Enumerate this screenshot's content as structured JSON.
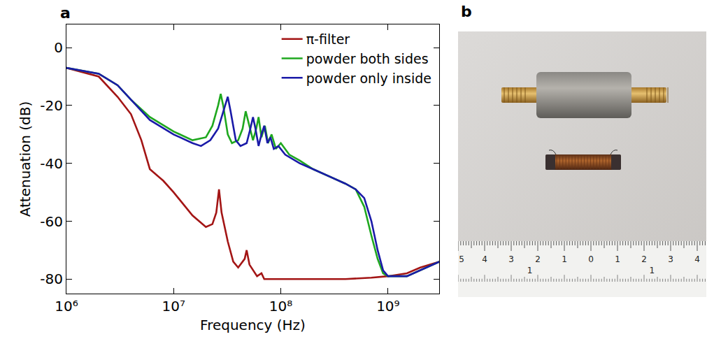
{
  "chart_data": {
    "type": "line",
    "title": "a",
    "x_label": "Frequency (Hz)",
    "y_label": "Attenuation (dB)",
    "log": "x",
    "xlim": [
      1000000,
      3000000000
    ],
    "xticks": [
      {
        "value": 1000000,
        "label": "10⁶"
      },
      {
        "value": 10000000,
        "label": "10⁷"
      },
      {
        "value": 100000000,
        "label": "10⁸"
      },
      {
        "value": 1000000000,
        "label": "10⁹"
      }
    ],
    "ylim": [
      -85,
      8
    ],
    "yticks": [
      -80,
      -60,
      -40,
      -20,
      0
    ],
    "grid": false,
    "legend": "top right",
    "series": [
      {
        "name": "π-filter",
        "color": "#a31515",
        "x": [
          1000000,
          2000000,
          3000000,
          4000000,
          5000000,
          6000000,
          8000000,
          10000000,
          15000000,
          20000000,
          23000000,
          25000000,
          26500000,
          28000000,
          32000000,
          36000000,
          40000000,
          46000000,
          48000000,
          51000000,
          60000000,
          66000000,
          70000000,
          100000000,
          200000000,
          400000000,
          700000000,
          1000000000,
          1500000000,
          2000000000,
          3000000000
        ],
        "values": [
          -7,
          -10,
          -17,
          -23,
          -32,
          -42,
          -46,
          -50,
          -58,
          -62,
          -61,
          -57,
          -49,
          -57,
          -67,
          -74,
          -76,
          -73,
          -70,
          -75,
          -79,
          -78,
          -80,
          -80,
          -80,
          -80,
          -79.5,
          -79,
          -78,
          -76,
          -74
        ]
      },
      {
        "name": "powder both sides",
        "color": "#1fa81f",
        "x": [
          1000000,
          2000000,
          3000000,
          4000000,
          6000000,
          10000000,
          15000000,
          20000000,
          23000000,
          26000000,
          27500000,
          29000000,
          32000000,
          35000000,
          40000000,
          44000000,
          47000000,
          50000000,
          55000000,
          59000000,
          62000000,
          66000000,
          71000000,
          76000000,
          82000000,
          90000000,
          100000000,
          120000000,
          150000000,
          200000000,
          300000000,
          400000000,
          500000000,
          600000000,
          700000000,
          800000000,
          900000000,
          1000000000,
          1500000000,
          2000000000,
          3000000000
        ],
        "values": [
          -7,
          -9,
          -13,
          -18,
          -24,
          -29,
          -32,
          -31,
          -27,
          -20,
          -16,
          -20,
          -30,
          -33,
          -32,
          -28,
          -22,
          -26,
          -32,
          -28,
          -24,
          -31,
          -27,
          -33,
          -30,
          -35,
          -33,
          -37,
          -39,
          -42,
          -45,
          -47,
          -49,
          -55,
          -65,
          -73,
          -78,
          -79,
          -79,
          -77,
          -74
        ]
      },
      {
        "name": "powder only inside",
        "color": "#1a1aa8",
        "x": [
          1000000,
          2000000,
          3000000,
          4000000,
          6000000,
          10000000,
          15000000,
          18000000,
          22000000,
          26000000,
          30000000,
          32000000,
          34000000,
          38000000,
          42000000,
          48000000,
          52000000,
          55000000,
          58000000,
          62000000,
          66000000,
          70000000,
          75000000,
          80000000,
          86000000,
          95000000,
          110000000,
          150000000,
          200000000,
          300000000,
          400000000,
          500000000,
          600000000,
          700000000,
          800000000,
          900000000,
          1000000000,
          1500000000,
          2000000000,
          3000000000
        ],
        "values": [
          -7,
          -9,
          -13,
          -18,
          -25,
          -30,
          -33,
          -34,
          -32,
          -28,
          -20,
          -17,
          -22,
          -32,
          -34,
          -33,
          -28,
          -24,
          -28,
          -34,
          -30,
          -27,
          -33,
          -31,
          -35,
          -34,
          -37,
          -40,
          -42,
          -45,
          -47,
          -49,
          -52,
          -60,
          -70,
          -77,
          -79,
          -79,
          -77,
          -74
        ]
      }
    ]
  },
  "photo": {
    "title": "b",
    "ruler": {
      "top": [
        "5",
        "4",
        "3",
        "2",
        "1",
        "0",
        "1",
        "2",
        "3",
        "4"
      ],
      "bottom": [
        "1",
        "1"
      ]
    }
  }
}
